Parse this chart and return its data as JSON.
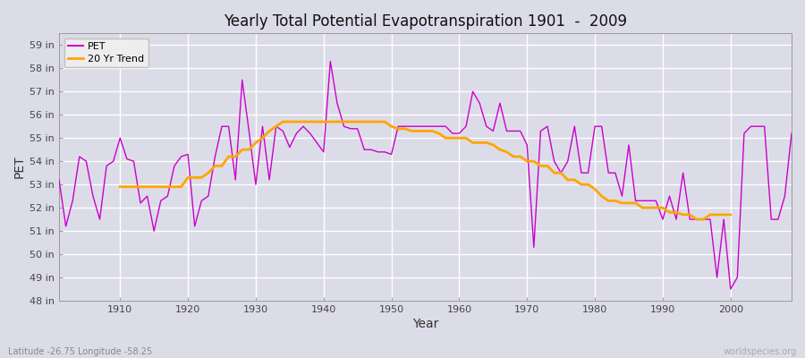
{
  "title": "Yearly Total Potential Evapotranspiration 1901  -  2009",
  "xlabel": "Year",
  "ylabel": "PET",
  "subtitle": "Latitude -26.75 Longitude -58.25",
  "watermark": "worldspecies.org",
  "years": [
    1901,
    1902,
    1903,
    1904,
    1905,
    1906,
    1907,
    1908,
    1909,
    1910,
    1911,
    1912,
    1913,
    1914,
    1915,
    1916,
    1917,
    1918,
    1919,
    1920,
    1921,
    1922,
    1923,
    1924,
    1925,
    1926,
    1927,
    1928,
    1929,
    1930,
    1931,
    1932,
    1933,
    1934,
    1935,
    1936,
    1937,
    1938,
    1939,
    1940,
    1941,
    1942,
    1943,
    1944,
    1945,
    1946,
    1947,
    1948,
    1949,
    1950,
    1951,
    1952,
    1953,
    1954,
    1955,
    1956,
    1957,
    1958,
    1959,
    1960,
    1961,
    1962,
    1963,
    1964,
    1965,
    1966,
    1967,
    1968,
    1969,
    1970,
    1971,
    1972,
    1973,
    1974,
    1975,
    1976,
    1977,
    1978,
    1979,
    1980,
    1981,
    1982,
    1983,
    1984,
    1985,
    1986,
    1987,
    1988,
    1989,
    1990,
    1991,
    1992,
    1993,
    1994,
    1995,
    1996,
    1997,
    1998,
    1999,
    2000,
    2001,
    2002,
    2003,
    2004,
    2005,
    2006,
    2007,
    2008,
    2009
  ],
  "pet": [
    53.2,
    51.2,
    52.3,
    54.2,
    54.0,
    52.5,
    51.5,
    53.8,
    54.0,
    55.0,
    54.1,
    54.0,
    52.2,
    52.5,
    51.0,
    52.3,
    52.5,
    53.8,
    54.2,
    54.3,
    51.2,
    52.3,
    52.5,
    54.2,
    55.5,
    55.5,
    53.2,
    57.5,
    55.3,
    53.0,
    55.5,
    53.2,
    55.5,
    55.3,
    54.6,
    55.2,
    55.5,
    55.2,
    54.8,
    54.4,
    58.3,
    56.5,
    55.5,
    55.4,
    55.4,
    54.5,
    54.5,
    54.4,
    54.4,
    54.3,
    55.5,
    55.5,
    55.5,
    55.5,
    55.5,
    55.5,
    55.5,
    55.5,
    55.2,
    55.2,
    55.5,
    57.0,
    56.5,
    55.5,
    55.3,
    56.5,
    55.3,
    55.3,
    55.3,
    54.7,
    50.3,
    55.3,
    55.5,
    54.0,
    53.5,
    54.0,
    55.5,
    53.5,
    53.5,
    55.5,
    55.5,
    53.5,
    53.5,
    52.5,
    54.7,
    52.3,
    52.3,
    52.3,
    52.3,
    51.5,
    52.5,
    51.5,
    53.5,
    51.5,
    51.5,
    51.5,
    51.5,
    49.0,
    51.5,
    48.5,
    49.0,
    55.2,
    55.5,
    55.5,
    55.5,
    51.5,
    51.5,
    52.5,
    55.2
  ],
  "trend_years": [
    1910,
    1911,
    1912,
    1913,
    1914,
    1915,
    1916,
    1917,
    1918,
    1919,
    1920,
    1921,
    1922,
    1923,
    1924,
    1925,
    1926,
    1927,
    1928,
    1929,
    1930,
    1931,
    1932,
    1933,
    1934,
    1935,
    1936,
    1937,
    1938,
    1939,
    1940,
    1941,
    1942,
    1943,
    1944,
    1945,
    1946,
    1947,
    1948,
    1949,
    1950,
    1951,
    1952,
    1953,
    1954,
    1955,
    1956,
    1957,
    1958,
    1959,
    1960,
    1961,
    1962,
    1963,
    1964,
    1965,
    1966,
    1967,
    1968,
    1969,
    1970,
    1971,
    1972,
    1973,
    1974,
    1975,
    1976,
    1977,
    1978,
    1979,
    1980,
    1981,
    1982,
    1983,
    1984,
    1985,
    1986,
    1987,
    1988,
    1989,
    1990,
    1991,
    1992,
    1993,
    1994,
    1995,
    1996,
    1997,
    1998,
    1999,
    2000
  ],
  "trend": [
    52.9,
    52.9,
    52.9,
    52.9,
    52.9,
    52.9,
    52.9,
    52.9,
    52.9,
    52.9,
    53.3,
    53.3,
    53.3,
    53.5,
    53.8,
    53.8,
    54.2,
    54.2,
    54.5,
    54.5,
    54.8,
    55.0,
    55.3,
    55.5,
    55.7,
    55.7,
    55.7,
    55.7,
    55.7,
    55.7,
    55.7,
    55.7,
    55.7,
    55.7,
    55.7,
    55.7,
    55.7,
    55.7,
    55.7,
    55.7,
    55.5,
    55.4,
    55.4,
    55.3,
    55.3,
    55.3,
    55.3,
    55.2,
    55.0,
    55.0,
    55.0,
    55.0,
    54.8,
    54.8,
    54.8,
    54.7,
    54.5,
    54.4,
    54.2,
    54.2,
    54.0,
    54.0,
    53.8,
    53.8,
    53.5,
    53.5,
    53.2,
    53.2,
    53.0,
    53.0,
    52.8,
    52.5,
    52.3,
    52.3,
    52.2,
    52.2,
    52.2,
    52.0,
    52.0,
    52.0,
    52.0,
    51.8,
    51.8,
    51.7,
    51.7,
    51.5,
    51.5,
    51.7,
    51.7,
    51.7,
    51.7
  ],
  "pet_color": "#CC00CC",
  "trend_color": "#FFA500",
  "bg_color": "#DCDCE8",
  "plot_bg_color": "#DCDCE8",
  "grid_color": "#FFFFFF",
  "ylim": [
    48,
    59.5
  ],
  "yticks": [
    48,
    49,
    50,
    51,
    52,
    53,
    54,
    55,
    56,
    57,
    58,
    59
  ],
  "xtick_years": [
    1910,
    1920,
    1930,
    1940,
    1950,
    1960,
    1970,
    1980,
    1990,
    2000
  ]
}
